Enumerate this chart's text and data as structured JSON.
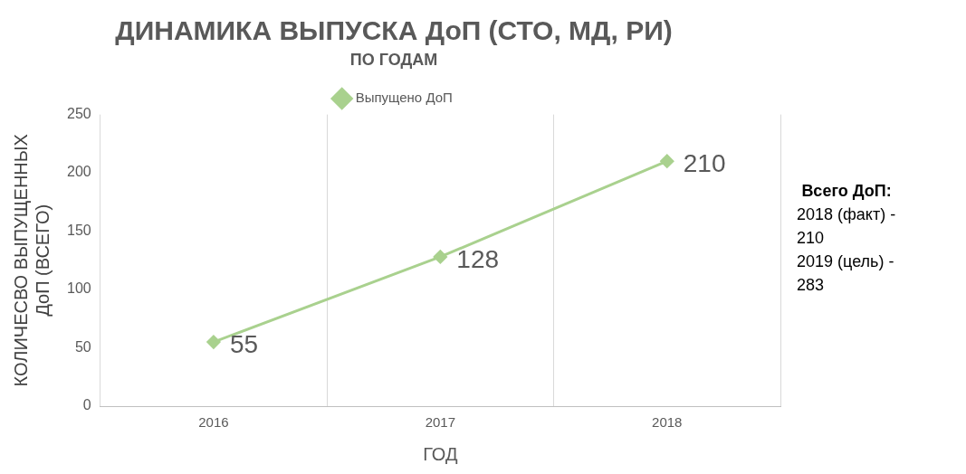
{
  "chart_data": {
    "type": "line",
    "title": "ДИНАМИКА ВЫПУСКА ДоП (СТО, МД, РИ)",
    "subtitle": "ПО ГОДАМ",
    "xlabel": "ГОД",
    "ylabel": "КОЛИЧЕСВО ВЫПУЩЕННЫХ ДоП (ВСЕГО)",
    "categories": [
      "2016",
      "2017",
      "2018"
    ],
    "series": [
      {
        "name": "Выпущено ДоП",
        "color": "#a9d18e",
        "values": [
          55,
          128,
          210
        ]
      }
    ],
    "ylim": [
      0,
      250
    ],
    "yticks": [
      0,
      50,
      100,
      150,
      200,
      250
    ],
    "grid": "x",
    "legend": "top",
    "marker": "diamond",
    "line_style": "solid",
    "data_labels": true,
    "annotations": [
      "Всего ДоП:",
      "2018 (факт) - 210",
      "2019 (цель) - 283"
    ]
  }
}
